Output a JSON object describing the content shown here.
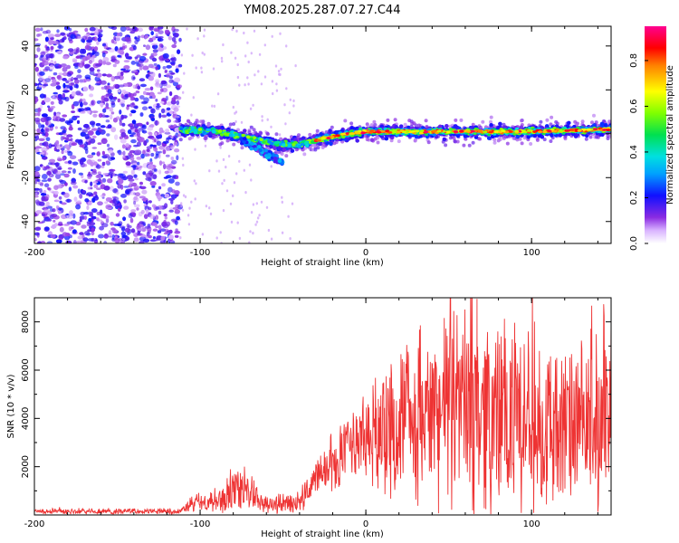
{
  "title": "YM08.2025.287.07.27.C44",
  "chart_data": [
    {
      "type": "heatmap",
      "title": "YM08.2025.287.07.27.C44",
      "xlabel": "Height of straight line (km)",
      "ylabel": "Frequency (Hz)",
      "xlim": [
        -200,
        148
      ],
      "ylim": [
        -50,
        49
      ],
      "xticks": [
        -200,
        -100,
        0,
        100
      ],
      "yticks": [
        -40,
        -20,
        0,
        20,
        40
      ],
      "colorbar": {
        "label": "Normalized spectral amplitude",
        "range": [
          0.0,
          0.95
        ],
        "ticks": [
          0.0,
          0.2,
          0.4,
          0.6,
          0.8
        ],
        "colormap": "rainbow (white-violet-blue-cyan-green-yellow-red-magenta)"
      },
      "features": [
        {
          "name": "noise region",
          "x_range": [
            -200,
            -112
          ],
          "freq_range": [
            -50,
            49
          ],
          "amplitude": "0.1-0.3"
        },
        {
          "name": "main line track",
          "points": [
            [
              -112,
              2
            ],
            [
              -90,
              1
            ],
            [
              -70,
              -2
            ],
            [
              -50,
              -5
            ],
            [
              -40,
              -5
            ],
            [
              -25,
              -2
            ],
            [
              -10,
              0
            ],
            [
              0,
              1
            ],
            [
              50,
              1
            ],
            [
              100,
              1
            ],
            [
              148,
              2
            ]
          ],
          "amplitude": "0.5-0.95"
        },
        {
          "name": "secondary branch",
          "points": [
            [
              -75,
              -3
            ],
            [
              -60,
              -9
            ],
            [
              -50,
              -13
            ]
          ],
          "amplitude": "0.3-0.5"
        }
      ]
    },
    {
      "type": "line",
      "xlabel": "Height of straight line (km)",
      "ylabel": "SNR (10 * v/v)",
      "xlim": [
        -200,
        148
      ],
      "ylim": [
        0,
        9000
      ],
      "xticks": [
        -200,
        -100,
        0,
        100
      ],
      "yticks": [
        2000,
        4000,
        6000,
        8000
      ],
      "series_color": "#ee3333",
      "envelope_mean": [
        [
          -200,
          150
        ],
        [
          -112,
          150
        ],
        [
          -105,
          450
        ],
        [
          -85,
          700
        ],
        [
          -75,
          1100
        ],
        [
          -68,
          800
        ],
        [
          -60,
          400
        ],
        [
          -40,
          500
        ],
        [
          -30,
          1500
        ],
        [
          -10,
          2600
        ],
        [
          0,
          3200
        ],
        [
          20,
          3800
        ],
        [
          40,
          4300
        ],
        [
          60,
          4600
        ],
        [
          80,
          4200
        ],
        [
          100,
          3800
        ],
        [
          120,
          3600
        ],
        [
          148,
          3600
        ]
      ],
      "envelope_amplitude": [
        [
          -200,
          100
        ],
        [
          -112,
          100
        ],
        [
          -105,
          300
        ],
        [
          -75,
          900
        ],
        [
          -60,
          350
        ],
        [
          -40,
          400
        ],
        [
          -20,
          1200
        ],
        [
          0,
          1800
        ],
        [
          30,
          3000
        ],
        [
          60,
          3800
        ],
        [
          90,
          3500
        ],
        [
          120,
          3000
        ],
        [
          148,
          3000
        ]
      ],
      "peak": {
        "x": 67,
        "y": 8950
      }
    }
  ]
}
